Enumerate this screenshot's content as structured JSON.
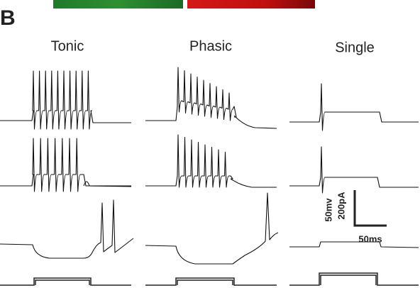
{
  "panel_label": "B",
  "columns": [
    "Tonic",
    "Phasic",
    "Single"
  ],
  "scale_bar": {
    "voltage": "50mv",
    "current": "200pA",
    "time": "50ms"
  }
}
